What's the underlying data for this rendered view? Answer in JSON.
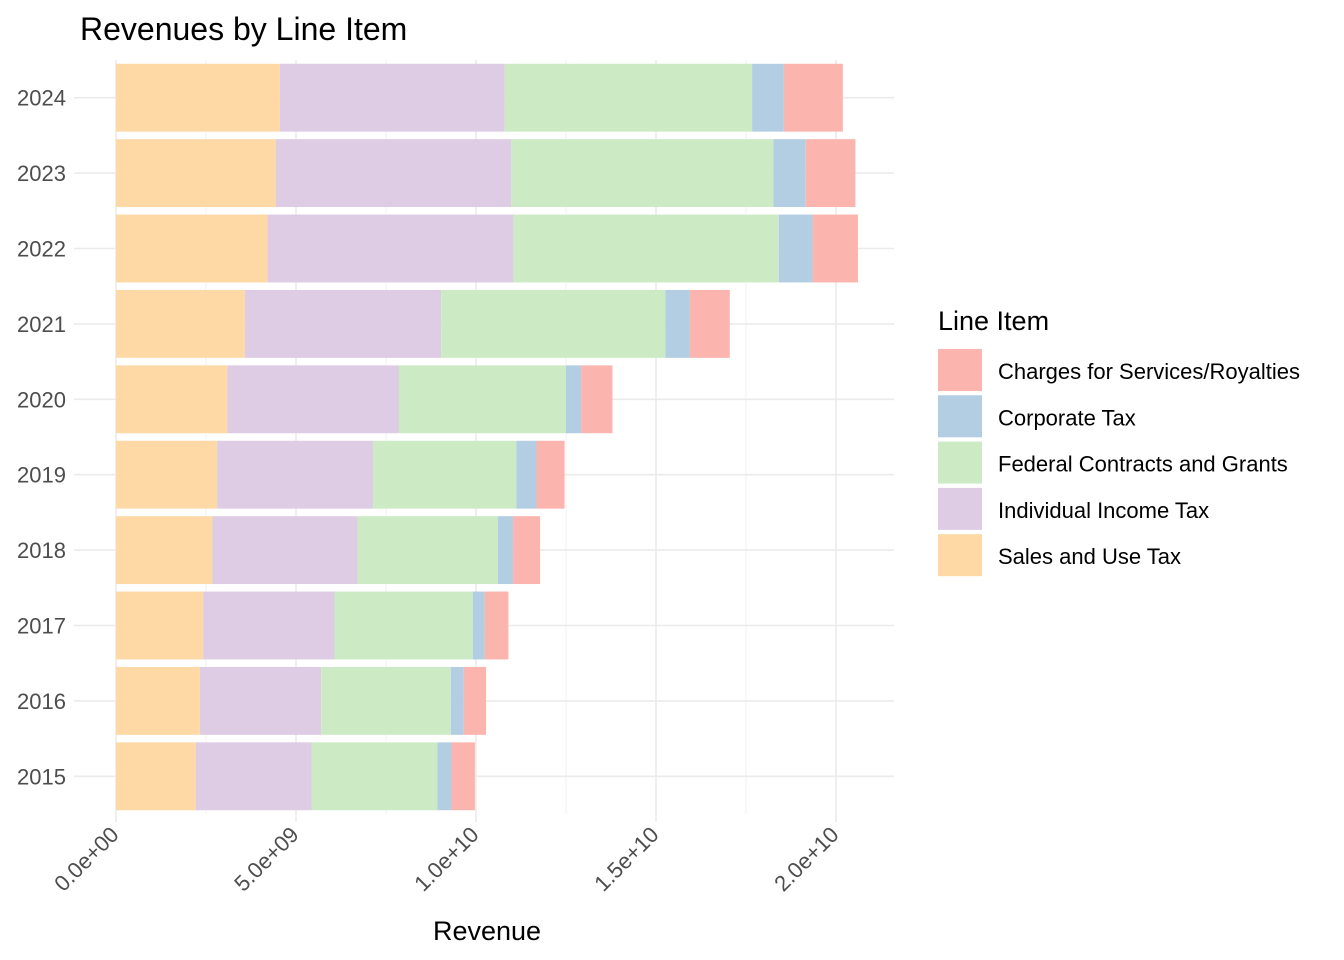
{
  "chart_data": {
    "type": "bar",
    "orientation": "horizontal",
    "stacked": true,
    "title": "Revenues by Line Item",
    "xlabel": "Revenue",
    "ylabel": "",
    "xlim": [
      -1000000000.0,
      21600000000.0
    ],
    "x_ticks": [
      0,
      5000000000.0,
      10000000000.0,
      15000000000.0,
      20000000000.0
    ],
    "x_tick_labels": [
      "0.0e+00",
      "5.0e+09",
      "1.0e+10",
      "1.5e+10",
      "2.0e+10"
    ],
    "categories": [
      "2015",
      "2016",
      "2017",
      "2018",
      "2019",
      "2020",
      "2021",
      "2022",
      "2023",
      "2024"
    ],
    "grid": true,
    "legend": {
      "title": "Line Item",
      "placement": "right"
    },
    "series": [
      {
        "name": "Sales and Use Tax",
        "color": "#FED9A6",
        "values": [
          2220000000.0,
          2330000000.0,
          2420000000.0,
          2680000000.0,
          2810000000.0,
          3090000000.0,
          3580000000.0,
          4210000000.0,
          4440000000.0,
          4550000000.0
        ]
      },
      {
        "name": "Individual Income Tax",
        "color": "#DECBE4",
        "values": [
          3210000000.0,
          3370000000.0,
          3650000000.0,
          4030000000.0,
          4330000000.0,
          4770000000.0,
          5450000000.0,
          6830000000.0,
          6540000000.0,
          6250000000.0
        ]
      },
      {
        "name": "Federal Contracts and Grants",
        "color": "#CCEBC5",
        "values": [
          3500000000.0,
          3600000000.0,
          3840000000.0,
          3900000000.0,
          3980000000.0,
          4640000000.0,
          6230000000.0,
          7370000000.0,
          7280000000.0,
          6870000000.0
        ]
      },
      {
        "name": "Corporate Tax",
        "color": "#B3CDE3",
        "values": [
          390000000.0,
          360000000.0,
          330000000.0,
          420000000.0,
          560000000.0,
          420000000.0,
          680000000.0,
          940000000.0,
          900000000.0,
          880000000.0
        ]
      },
      {
        "name": "Charges for Services/Royalties",
        "color": "#FBB4AE",
        "values": [
          650000000.0,
          620000000.0,
          660000000.0,
          750000000.0,
          780000000.0,
          870000000.0,
          1110000000.0,
          1260000000.0,
          1380000000.0,
          1640000000.0
        ]
      }
    ],
    "legend_order": [
      "Charges for Services/Royalties",
      "Corporate Tax",
      "Federal Contracts and Grants",
      "Individual Income Tax",
      "Sales and Use Tax"
    ]
  }
}
